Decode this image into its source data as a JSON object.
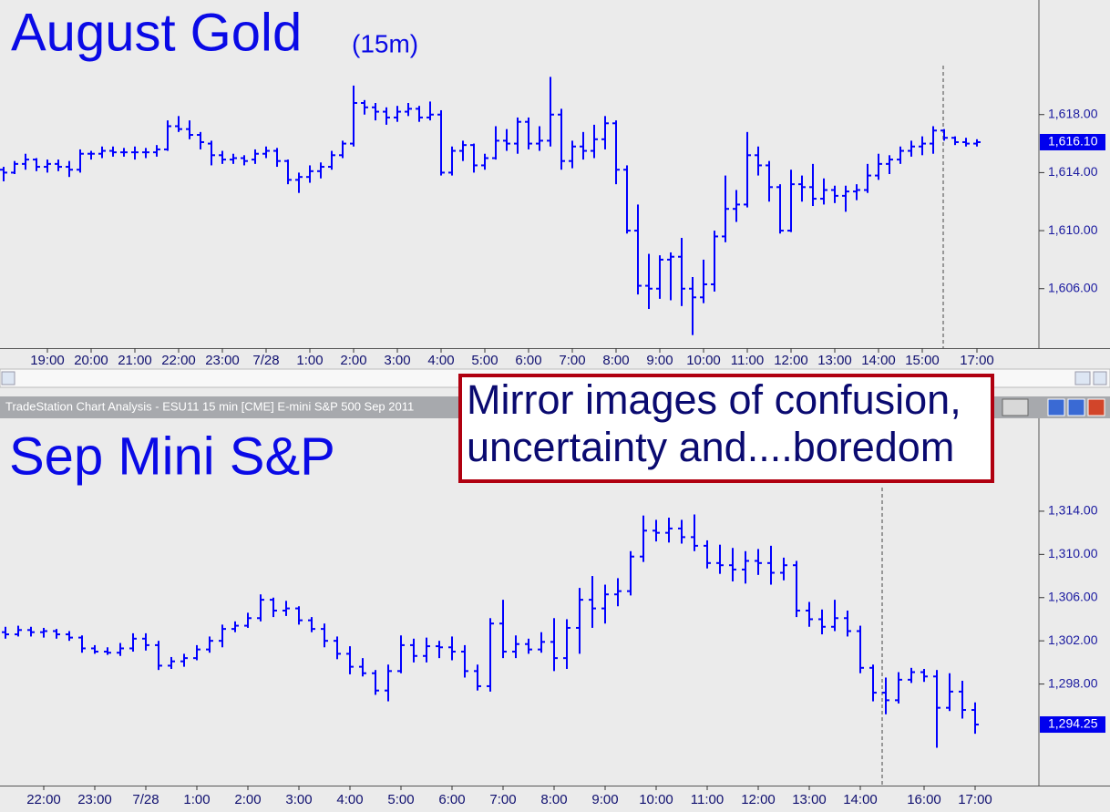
{
  "window": {
    "title": "TradeStation Chart Analysis - ESU11 15 min [CME] E-mini S&P 500 Sep 2011"
  },
  "chart_data": [
    {
      "type": "ohlc",
      "title": "August Gold",
      "subtitle": "(15m)",
      "color": "#0000ff",
      "ylim": [
        1601.9,
        1625.9
      ],
      "yticks": [
        {
          "value": 1606,
          "label": "1,606.00"
        },
        {
          "value": 1610,
          "label": "1,610.00"
        },
        {
          "value": 1614,
          "label": "1,614.00"
        },
        {
          "value": 1618,
          "label": "1,618.00"
        }
      ],
      "last_price": {
        "value": 1616.1,
        "label": "1,616.10"
      },
      "categories": [
        null,
        null,
        null,
        null,
        "19:00",
        null,
        null,
        null,
        "20:00",
        null,
        null,
        null,
        "21:00",
        null,
        null,
        null,
        "22:00",
        null,
        null,
        null,
        "23:00",
        null,
        null,
        null,
        "7/28",
        null,
        null,
        null,
        "1:00",
        null,
        null,
        null,
        "2:00",
        null,
        null,
        null,
        "3:00",
        null,
        null,
        null,
        "4:00",
        null,
        null,
        null,
        "5:00",
        null,
        null,
        null,
        "6:00",
        null,
        null,
        null,
        "7:00",
        null,
        null,
        null,
        "8:00",
        null,
        null,
        null,
        "9:00",
        null,
        null,
        null,
        "10:00",
        null,
        null,
        null,
        "11:00",
        null,
        null,
        null,
        "12:00",
        null,
        null,
        null,
        "13:00",
        null,
        null,
        null,
        "14:00",
        null,
        null,
        null,
        "15:00",
        null,
        null,
        null,
        null,
        "17:00"
      ],
      "bars": [
        [
          1614.2,
          1614.4,
          1613.4,
          1614.0
        ],
        [
          1614.0,
          1614.8,
          1613.9,
          1614.6
        ],
        [
          1614.6,
          1615.3,
          1614.2,
          1614.9
        ],
        [
          1614.9,
          1615.0,
          1614.1,
          1614.4
        ],
        [
          1614.4,
          1614.9,
          1614.0,
          1614.6
        ],
        [
          1614.6,
          1614.9,
          1614.1,
          1614.4
        ],
        [
          1614.4,
          1614.8,
          1613.7,
          1614.2
        ],
        [
          1614.2,
          1615.6,
          1614.0,
          1615.3
        ],
        [
          1615.3,
          1615.5,
          1614.9,
          1615.3
        ],
        [
          1615.3,
          1615.8,
          1615.0,
          1615.5
        ],
        [
          1615.5,
          1615.8,
          1615.1,
          1615.4
        ],
        [
          1615.4,
          1615.7,
          1615.1,
          1615.4
        ],
        [
          1615.4,
          1615.8,
          1614.9,
          1615.4
        ],
        [
          1615.4,
          1615.7,
          1615.0,
          1615.4
        ],
        [
          1615.4,
          1615.9,
          1615.1,
          1615.6
        ],
        [
          1615.6,
          1617.6,
          1615.5,
          1617.2
        ],
        [
          1617.2,
          1617.9,
          1616.8,
          1617.0
        ],
        [
          1617.0,
          1617.6,
          1616.3,
          1616.6
        ],
        [
          1616.6,
          1616.8,
          1615.6,
          1616.1
        ],
        [
          1616.0,
          1616.2,
          1614.5,
          1615.2
        ],
        [
          1615.2,
          1615.5,
          1614.6,
          1614.9
        ],
        [
          1614.9,
          1615.3,
          1614.6,
          1615.0
        ],
        [
          1615.0,
          1615.2,
          1614.5,
          1614.8
        ],
        [
          1614.9,
          1615.6,
          1614.6,
          1615.3
        ],
        [
          1615.3,
          1615.8,
          1615.0,
          1615.5
        ],
        [
          1615.5,
          1615.7,
          1614.4,
          1614.8
        ],
        [
          1614.8,
          1614.9,
          1613.2,
          1613.5
        ],
        [
          1613.5,
          1614.0,
          1612.6,
          1613.7
        ],
        [
          1613.7,
          1614.5,
          1613.3,
          1614.1
        ],
        [
          1614.1,
          1614.7,
          1613.6,
          1614.4
        ],
        [
          1614.4,
          1615.5,
          1614.2,
          1615.2
        ],
        [
          1615.2,
          1616.2,
          1615.0,
          1616.0
        ],
        [
          1616.0,
          1620.0,
          1615.8,
          1618.8
        ],
        [
          1618.8,
          1619.0,
          1618.0,
          1618.5
        ],
        [
          1618.5,
          1618.8,
          1617.6,
          1618.2
        ],
        [
          1618.2,
          1618.5,
          1617.3,
          1617.8
        ],
        [
          1617.8,
          1618.6,
          1617.5,
          1618.2
        ],
        [
          1618.2,
          1618.8,
          1617.9,
          1618.4
        ],
        [
          1618.4,
          1618.6,
          1617.5,
          1617.8
        ],
        [
          1617.8,
          1618.9,
          1617.6,
          1618.0
        ],
        [
          1618.0,
          1618.3,
          1613.8,
          1614.0
        ],
        [
          1614.0,
          1615.8,
          1613.8,
          1615.5
        ],
        [
          1615.5,
          1616.2,
          1614.8,
          1615.9
        ],
        [
          1615.9,
          1616.0,
          1614.0,
          1614.5
        ],
        [
          1614.5,
          1615.3,
          1614.2,
          1615.0
        ],
        [
          1615.0,
          1617.2,
          1614.9,
          1616.2
        ],
        [
          1616.2,
          1617.0,
          1615.5,
          1616.0
        ],
        [
          1616.0,
          1617.8,
          1615.3,
          1617.5
        ],
        [
          1617.5,
          1617.8,
          1615.6,
          1616.0
        ],
        [
          1616.0,
          1617.2,
          1615.5,
          1616.2
        ],
        [
          1616.2,
          1620.6,
          1615.8,
          1618.0
        ],
        [
          1618.0,
          1618.4,
          1614.2,
          1614.8
        ],
        [
          1614.8,
          1616.2,
          1614.3,
          1615.8
        ],
        [
          1615.8,
          1616.8,
          1614.9,
          1615.5
        ],
        [
          1615.5,
          1617.3,
          1615.0,
          1616.3
        ],
        [
          1616.3,
          1617.9,
          1615.6,
          1617.4
        ],
        [
          1617.4,
          1617.6,
          1613.2,
          1614.2
        ],
        [
          1614.2,
          1614.5,
          1609.8,
          1610.0
        ],
        [
          1610.0,
          1611.8,
          1605.6,
          1606.2
        ],
        [
          1606.2,
          1608.4,
          1604.6,
          1606.0
        ],
        [
          1606.0,
          1608.3,
          1605.3,
          1608.0
        ],
        [
          1608.0,
          1608.5,
          1605.2,
          1608.2
        ],
        [
          1608.2,
          1609.5,
          1604.8,
          1606.0
        ],
        [
          1606.0,
          1606.8,
          1602.8,
          1605.4
        ],
        [
          1605.4,
          1608.0,
          1605.0,
          1606.3
        ],
        [
          1606.3,
          1610.0,
          1605.8,
          1609.6
        ],
        [
          1609.6,
          1613.8,
          1609.2,
          1611.5
        ],
        [
          1611.5,
          1612.8,
          1610.6,
          1611.8
        ],
        [
          1611.8,
          1616.8,
          1611.6,
          1615.2
        ],
        [
          1615.2,
          1615.8,
          1613.8,
          1614.5
        ],
        [
          1614.5,
          1614.8,
          1612.0,
          1613.0
        ],
        [
          1613.0,
          1613.2,
          1609.8,
          1610.0
        ],
        [
          1610.0,
          1614.2,
          1609.9,
          1613.2
        ],
        [
          1613.2,
          1613.8,
          1612.0,
          1613.0
        ],
        [
          1613.0,
          1614.6,
          1611.7,
          1612.2
        ],
        [
          1612.2,
          1613.6,
          1611.8,
          1612.8
        ],
        [
          1612.8,
          1613.1,
          1611.9,
          1612.4
        ],
        [
          1612.4,
          1613.1,
          1611.3,
          1612.7
        ],
        [
          1612.7,
          1613.2,
          1612.1,
          1612.8
        ],
        [
          1612.8,
          1614.6,
          1612.6,
          1613.8
        ],
        [
          1613.8,
          1615.3,
          1613.5,
          1614.6
        ],
        [
          1614.6,
          1615.2,
          1613.9,
          1614.9
        ],
        [
          1614.9,
          1615.8,
          1614.6,
          1615.5
        ],
        [
          1615.5,
          1616.2,
          1615.1,
          1615.8
        ],
        [
          1615.8,
          1616.5,
          1615.2,
          1616.0
        ],
        [
          1616.0,
          1617.2,
          1615.3,
          1616.9
        ],
        [
          1616.9,
          1617.0,
          1616.2,
          1616.4
        ],
        [
          1616.4,
          1616.5,
          1615.9,
          1616.1
        ],
        [
          1616.1,
          1616.4,
          1615.8,
          1616.0
        ],
        [
          1616.0,
          1616.3,
          1615.8,
          1616.1
        ]
      ]
    },
    {
      "type": "ohlc",
      "title": "Sep Mini S&P",
      "color": "#0000ff",
      "annotation": [
        "Mirror images of confusion,",
        "uncertainty and....boredom"
      ],
      "ylim": [
        1288.6,
        1322.6
      ],
      "yticks": [
        {
          "value": 1298,
          "label": "1,298.00"
        },
        {
          "value": 1302,
          "label": "1,302.00"
        },
        {
          "value": 1306,
          "label": "1,306.00"
        },
        {
          "value": 1310,
          "label": "1,310.00"
        },
        {
          "value": 1314,
          "label": "1,314.00"
        }
      ],
      "last_price": {
        "value": 1294.25,
        "label": "1,294.25"
      },
      "categories": [
        null,
        null,
        null,
        "22:00",
        null,
        null,
        null,
        "23:00",
        null,
        null,
        null,
        "7/28",
        null,
        null,
        null,
        "1:00",
        null,
        null,
        null,
        "2:00",
        null,
        null,
        null,
        "3:00",
        null,
        null,
        null,
        "4:00",
        null,
        null,
        null,
        "5:00",
        null,
        null,
        null,
        "6:00",
        null,
        null,
        null,
        "7:00",
        null,
        null,
        null,
        "8:00",
        null,
        null,
        null,
        "9:00",
        null,
        null,
        null,
        "10:00",
        null,
        null,
        null,
        "11:00",
        null,
        null,
        null,
        "12:00",
        null,
        null,
        null,
        "13:00",
        null,
        null,
        null,
        "14:00",
        null,
        null,
        null,
        null,
        "16:00",
        null,
        null,
        null,
        "17:00"
      ],
      "bars": [
        [
          1302.8,
          1303.3,
          1302.2,
          1302.6
        ],
        [
          1302.6,
          1303.4,
          1302.4,
          1303.0
        ],
        [
          1303.0,
          1303.3,
          1302.4,
          1302.8
        ],
        [
          1302.8,
          1303.2,
          1302.3,
          1302.9
        ],
        [
          1302.9,
          1303.1,
          1302.2,
          1302.6
        ],
        [
          1302.6,
          1302.9,
          1302.0,
          1302.3
        ],
        [
          1302.3,
          1302.5,
          1300.9,
          1301.3
        ],
        [
          1301.3,
          1301.6,
          1300.8,
          1301.0
        ],
        [
          1301.0,
          1301.4,
          1300.7,
          1300.9
        ],
        [
          1300.9,
          1301.8,
          1300.6,
          1301.3
        ],
        [
          1301.3,
          1302.7,
          1301.0,
          1302.2
        ],
        [
          1302.2,
          1302.7,
          1301.1,
          1301.6
        ],
        [
          1301.6,
          1302.0,
          1299.3,
          1299.7
        ],
        [
          1299.7,
          1300.5,
          1299.4,
          1300.1
        ],
        [
          1300.1,
          1300.8,
          1299.6,
          1300.4
        ],
        [
          1300.4,
          1301.6,
          1300.2,
          1301.2
        ],
        [
          1301.2,
          1302.4,
          1300.9,
          1302.0
        ],
        [
          1302.0,
          1303.5,
          1301.4,
          1303.1
        ],
        [
          1303.1,
          1303.8,
          1302.8,
          1303.4
        ],
        [
          1303.4,
          1304.6,
          1303.2,
          1304.1
        ],
        [
          1304.1,
          1306.3,
          1303.8,
          1305.8
        ],
        [
          1305.8,
          1306.0,
          1304.2,
          1304.8
        ],
        [
          1304.8,
          1305.7,
          1304.3,
          1305.0
        ],
        [
          1305.0,
          1305.2,
          1303.5,
          1303.9
        ],
        [
          1303.9,
          1304.2,
          1302.8,
          1303.1
        ],
        [
          1303.1,
          1303.6,
          1301.4,
          1302.0
        ],
        [
          1302.0,
          1302.4,
          1300.3,
          1300.8
        ],
        [
          1300.8,
          1301.5,
          1298.9,
          1299.6
        ],
        [
          1299.6,
          1300.4,
          1298.7,
          1299.0
        ],
        [
          1299.0,
          1299.3,
          1297.0,
          1297.4
        ],
        [
          1297.4,
          1299.8,
          1296.4,
          1299.2
        ],
        [
          1299.2,
          1302.5,
          1299.0,
          1301.6
        ],
        [
          1301.6,
          1302.2,
          1300.0,
          1300.6
        ],
        [
          1300.6,
          1302.3,
          1300.0,
          1301.5
        ],
        [
          1301.5,
          1302.0,
          1300.4,
          1301.4
        ],
        [
          1301.4,
          1302.4,
          1300.2,
          1301.0
        ],
        [
          1301.0,
          1301.6,
          1298.6,
          1299.2
        ],
        [
          1299.2,
          1299.8,
          1297.4,
          1297.8
        ],
        [
          1297.8,
          1304.1,
          1297.3,
          1303.6
        ],
        [
          1303.6,
          1305.8,
          1300.4,
          1301.0
        ],
        [
          1301.0,
          1302.5,
          1300.4,
          1301.7
        ],
        [
          1301.7,
          1302.2,
          1300.8,
          1301.2
        ],
        [
          1301.2,
          1302.8,
          1300.9,
          1301.9
        ],
        [
          1301.9,
          1304.1,
          1299.2,
          1300.4
        ],
        [
          1300.4,
          1304.0,
          1299.4,
          1303.2
        ],
        [
          1303.2,
          1306.9,
          1300.8,
          1305.8
        ],
        [
          1305.8,
          1308.0,
          1303.2,
          1305.0
        ],
        [
          1305.0,
          1307.2,
          1303.6,
          1306.3
        ],
        [
          1306.3,
          1307.8,
          1305.2,
          1306.6
        ],
        [
          1306.6,
          1310.3,
          1306.2,
          1309.8
        ],
        [
          1309.8,
          1313.6,
          1309.3,
          1312.2
        ],
        [
          1312.2,
          1313.2,
          1311.2,
          1312.0
        ],
        [
          1312.0,
          1313.4,
          1311.1,
          1312.4
        ],
        [
          1312.4,
          1313.2,
          1311.0,
          1311.6
        ],
        [
          1311.6,
          1313.7,
          1310.3,
          1310.8
        ],
        [
          1310.8,
          1311.3,
          1308.7,
          1309.2
        ],
        [
          1309.2,
          1310.9,
          1308.2,
          1309.0
        ],
        [
          1309.0,
          1310.6,
          1307.5,
          1308.6
        ],
        [
          1308.6,
          1310.3,
          1307.3,
          1309.4
        ],
        [
          1309.4,
          1310.5,
          1308.1,
          1309.2
        ],
        [
          1309.2,
          1310.8,
          1307.2,
          1308.3
        ],
        [
          1308.3,
          1309.7,
          1307.6,
          1309.0
        ],
        [
          1309.0,
          1309.4,
          1304.2,
          1304.8
        ],
        [
          1304.8,
          1305.6,
          1303.3,
          1304.0
        ],
        [
          1304.0,
          1304.9,
          1302.6,
          1303.3
        ],
        [
          1303.3,
          1305.8,
          1302.9,
          1304.1
        ],
        [
          1304.1,
          1304.8,
          1302.4,
          1302.9
        ],
        [
          1302.9,
          1303.4,
          1299.0,
          1299.5
        ],
        [
          1299.5,
          1299.8,
          1296.4,
          1297.2
        ],
        [
          1297.2,
          1298.6,
          1295.2,
          1296.5
        ],
        [
          1296.5,
          1299.1,
          1296.2,
          1298.4
        ],
        [
          1298.4,
          1299.5,
          1298.1,
          1299.1
        ],
        [
          1299.1,
          1299.4,
          1298.2,
          1298.7
        ],
        [
          1298.7,
          1299.3,
          1292.1,
          1295.8
        ],
        [
          1295.8,
          1299.0,
          1295.5,
          1297.3
        ],
        [
          1297.3,
          1298.3,
          1294.8,
          1295.6
        ],
        [
          1295.6,
          1296.3,
          1293.4,
          1294.25
        ]
      ]
    }
  ]
}
